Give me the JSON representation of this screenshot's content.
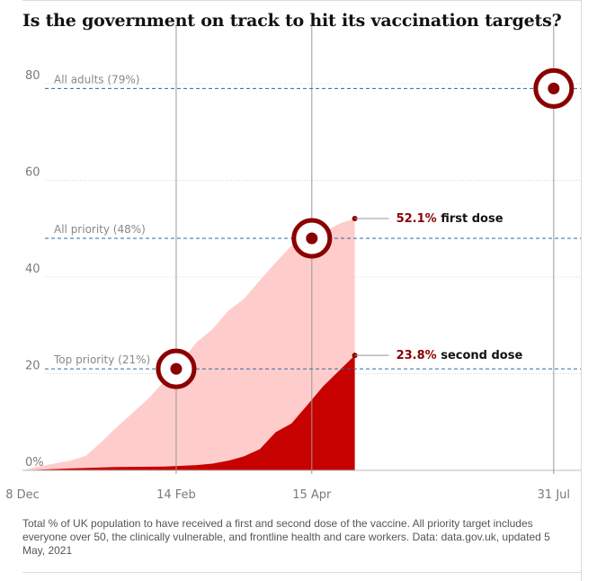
{
  "title": "Is the government on track to hit its vaccination targets?",
  "caption": "Total % of UK population to have received a first and second dose of the vaccine. All priority target includes everyone over 50, the clinically vulnerable, and frontline health and care workers. Data: data.gov.uk, updated 5 May, 2021",
  "colors": {
    "first_dose_fill": "#ffcccc",
    "second_dose_fill": "#c70000",
    "target_ring": "#8b0000",
    "target_line": "#2d6a9f",
    "marker_line": "#999999",
    "grid": "#d8d8d8"
  },
  "chart_data": {
    "type": "area",
    "x_axis": {
      "ticks": [
        {
          "date": "2020-12-08",
          "label": "8 Dec"
        },
        {
          "date": "2021-02-14",
          "label": "14 Feb"
        },
        {
          "date": "2021-04-15",
          "label": "15 Apr"
        },
        {
          "date": "2021-07-31",
          "label": "31 Jul"
        }
      ],
      "range": [
        "2020-12-08",
        "2021-08-12"
      ]
    },
    "y_axis": {
      "ticks": [
        {
          "value": 0,
          "label": "0%"
        },
        {
          "value": 20,
          "label": "20"
        },
        {
          "value": 40,
          "label": "40"
        },
        {
          "value": 60,
          "label": "60"
        },
        {
          "value": 80,
          "label": "80"
        }
      ],
      "range": [
        0,
        88
      ]
    },
    "grid": true,
    "series": [
      {
        "name": "first dose",
        "points": [
          [
            "2020-12-08",
            0
          ],
          [
            "2020-12-15",
            0.8
          ],
          [
            "2020-12-22",
            1.4
          ],
          [
            "2020-12-29",
            2.0
          ],
          [
            "2021-01-05",
            3.0
          ],
          [
            "2021-01-12",
            5.9
          ],
          [
            "2021-01-19",
            9.1
          ],
          [
            "2021-01-26",
            12.0
          ],
          [
            "2021-02-02",
            15.0
          ],
          [
            "2021-02-09",
            18.6
          ],
          [
            "2021-02-16",
            22.4
          ],
          [
            "2021-02-23",
            26.5
          ],
          [
            "2021-03-02",
            29.2
          ],
          [
            "2021-03-09",
            33.0
          ],
          [
            "2021-03-16",
            35.5
          ],
          [
            "2021-03-23",
            39.3
          ],
          [
            "2021-03-30",
            43.0
          ],
          [
            "2021-04-06",
            46.5
          ],
          [
            "2021-04-13",
            47.8
          ],
          [
            "2021-04-20",
            49.2
          ],
          [
            "2021-04-27",
            51.0
          ],
          [
            "2021-05-04",
            52.1
          ]
        ],
        "last_label": {
          "value_text": "52.1%",
          "text": "first dose"
        }
      },
      {
        "name": "second dose",
        "points": [
          [
            "2020-12-08",
            0
          ],
          [
            "2020-12-29",
            0.4
          ],
          [
            "2021-01-19",
            0.7
          ],
          [
            "2021-02-09",
            0.8
          ],
          [
            "2021-02-23",
            1.1
          ],
          [
            "2021-03-02",
            1.4
          ],
          [
            "2021-03-09",
            2.0
          ],
          [
            "2021-03-16",
            2.9
          ],
          [
            "2021-03-23",
            4.4
          ],
          [
            "2021-03-30",
            7.9
          ],
          [
            "2021-04-06",
            9.7
          ],
          [
            "2021-04-13",
            13.5
          ],
          [
            "2021-04-20",
            17.4
          ],
          [
            "2021-04-27",
            20.6
          ],
          [
            "2021-05-04",
            23.8
          ]
        ],
        "last_label": {
          "value_text": "23.8%",
          "text": "second dose"
        }
      }
    ],
    "targets": [
      {
        "label": "Top priority (21%)",
        "value": 21,
        "date": "2021-02-14"
      },
      {
        "label": "All priority (48%)",
        "value": 48,
        "date": "2021-04-15"
      },
      {
        "label": "All adults (79%)",
        "value": 79,
        "date": "2021-07-31"
      }
    ]
  }
}
